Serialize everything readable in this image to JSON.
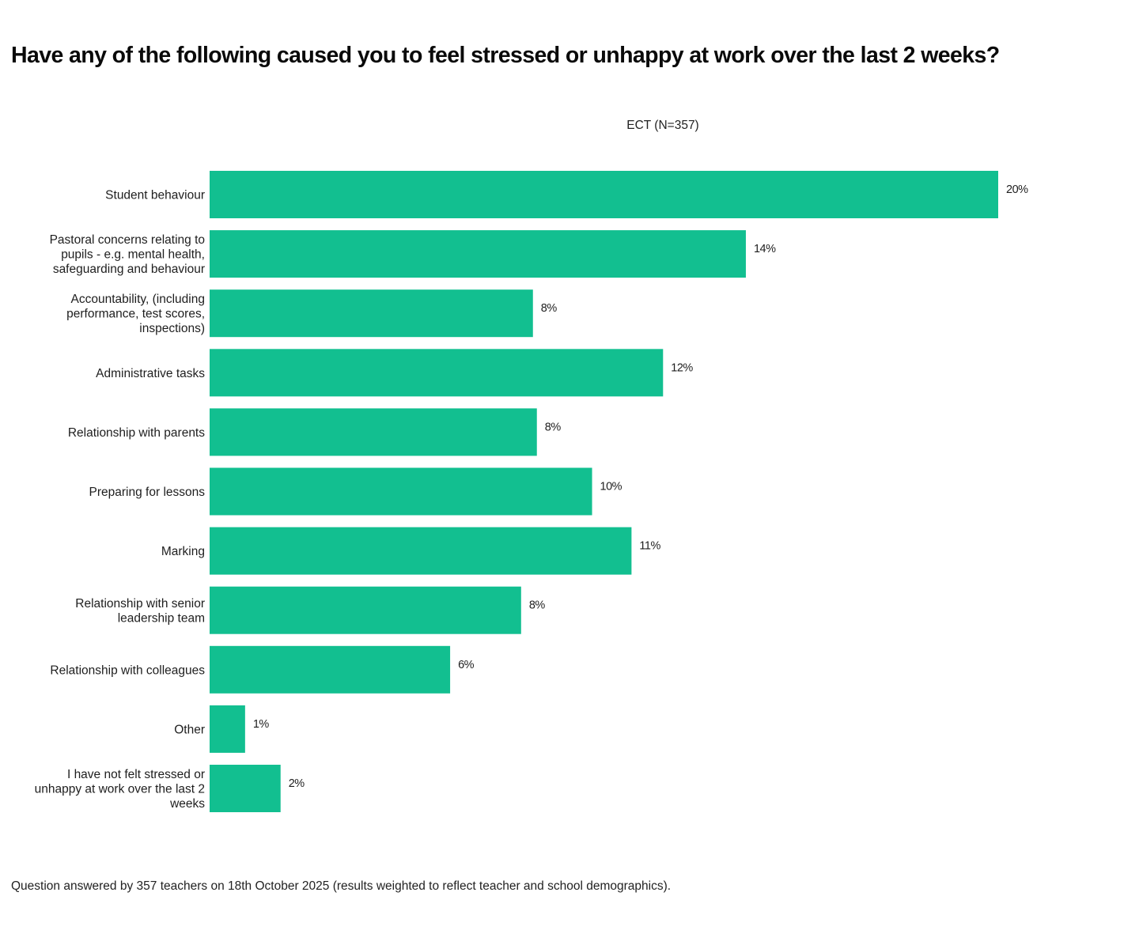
{
  "chart_data": {
    "type": "bar",
    "orientation": "horizontal",
    "title": "Have any of the following caused you to feel stressed or unhappy at work over the last 2 weeks?",
    "series_label": "ECT (N=357)",
    "categories": [
      [
        "Student behaviour"
      ],
      [
        "Pastoral concerns relating to",
        "pupils - e.g. mental health,",
        "safeguarding and behaviour"
      ],
      [
        "Accountability, (including",
        "performance, test scores,",
        "inspections)"
      ],
      [
        "Administrative tasks"
      ],
      [
        "Relationship with parents"
      ],
      [
        "Preparing for lessons"
      ],
      [
        "Marking"
      ],
      [
        "Relationship with senior",
        "leadership team"
      ],
      [
        "Relationship with colleagues"
      ],
      [
        "Other"
      ],
      [
        "I have not felt stressed or",
        "unhappy at work over the last 2",
        "weeks"
      ]
    ],
    "values": [
      20.0,
      13.6,
      8.2,
      11.5,
      8.3,
      9.7,
      10.7,
      7.9,
      6.1,
      0.9,
      1.8
    ],
    "value_labels": [
      "20%",
      "14%",
      "8%",
      "12%",
      "8%",
      "10%",
      "11%",
      "8%",
      "6%",
      "1%",
      "2%"
    ],
    "xlim": [
      0,
      20
    ],
    "xlabel": "",
    "ylabel": "",
    "grid": false,
    "legend": "none",
    "bar_color": "#12bf90"
  },
  "footnote": "Question answered by 357 teachers on 18th October 2025 (results weighted to reflect teacher and school demographics)."
}
